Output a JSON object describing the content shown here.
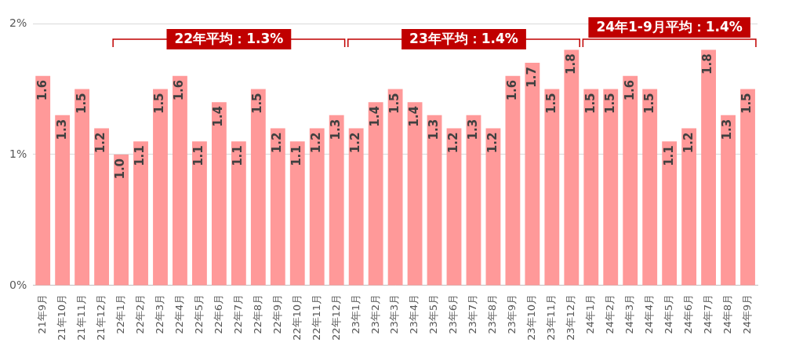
{
  "chart_data": {
    "type": "bar",
    "categories": [
      "21年9月",
      "21年10月",
      "21年11月",
      "21年12月",
      "22年1月",
      "22年2月",
      "22年3月",
      "22年4月",
      "22年5月",
      "22年6月",
      "22年7月",
      "22年8月",
      "22年9月",
      "22年10月",
      "22年11月",
      "22年12月",
      "23年1月",
      "23年2月",
      "23年3月",
      "23年4月",
      "23年5月",
      "23年6月",
      "23年7月",
      "23年8月",
      "23年9月",
      "23年10月",
      "23年11月",
      "23年12月",
      "24年1月",
      "24年2月",
      "24年3月",
      "24年4月",
      "24年5月",
      "24年6月",
      "24年7月",
      "24年8月",
      "24年9月"
    ],
    "values": [
      1.6,
      1.3,
      1.5,
      1.2,
      1.0,
      1.1,
      1.5,
      1.6,
      1.1,
      1.4,
      1.1,
      1.5,
      1.2,
      1.1,
      1.2,
      1.3,
      1.2,
      1.4,
      1.5,
      1.4,
      1.3,
      1.2,
      1.3,
      1.2,
      1.6,
      1.7,
      1.5,
      1.8,
      1.5,
      1.5,
      1.6,
      1.5,
      1.1,
      1.2,
      1.8,
      1.3,
      1.5
    ],
    "value_labels": [
      "1.6",
      "1.3",
      "1.5",
      "1.2",
      "1.0",
      "1.1",
      "1.5",
      "1.6",
      "1.1",
      "1.4",
      "1.1",
      "1.5",
      "1.2",
      "1.1",
      "1.2",
      "1.3",
      "1.2",
      "1.4",
      "1.5",
      "1.4",
      "1.3",
      "1.2",
      "1.3",
      "1.2",
      "1.6",
      "1.7",
      "1.5",
      "1.8",
      "1.5",
      "1.5",
      "1.6",
      "1.5",
      "1.1",
      "1.2",
      "1.8",
      "1.3",
      "1.5"
    ],
    "color": "#ff9999",
    "ylim": [
      0,
      2
    ],
    "yticks": [
      {
        "value": 0,
        "label": "0%"
      },
      {
        "value": 1,
        "label": "1%"
      },
      {
        "value": 2,
        "label": "2%"
      }
    ],
    "grid": true,
    "data_labels": true,
    "annotations": [
      {
        "text": "22年平均：1.3%",
        "start": "22年1月",
        "end": "22年12月"
      },
      {
        "text": "23年平均：1.4%",
        "start": "23年1月",
        "end": "23年12月"
      },
      {
        "text": "24年1-9月平均：1.4%",
        "start": "24年1月",
        "end": "24年9月"
      }
    ]
  }
}
